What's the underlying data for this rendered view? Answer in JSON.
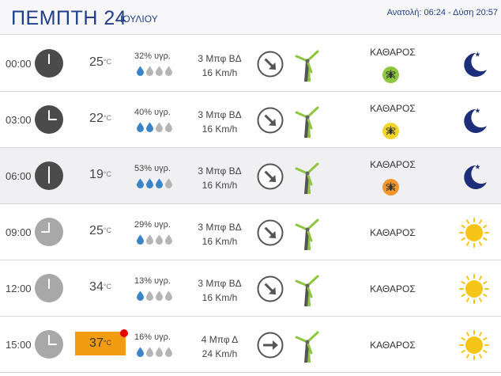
{
  "header": {
    "day_title": "ΠΕΜΠΤΗ 24",
    "month": "ΙΟΥΛΙΟΥ",
    "sun_info": "Ανατολή: 06:24  - Δύση 20:57"
  },
  "colors": {
    "title_blue": "#1f3f8a",
    "drop_filled": "#3a85c9",
    "drop_empty": "#b5b5b5",
    "mosquito_low": "#8dc63f",
    "mosquito_medium": "#f2d52b",
    "mosquito_high": "#f0962c",
    "hot_temperature": "#f39c12",
    "moon": "#1d2f7a",
    "sun": "#f5c518"
  },
  "temp_unit": "°C",
  "forecast": [
    {
      "time": "00:00",
      "hour": 0,
      "clock": "night",
      "temperature": "25",
      "humidity": "32% υγρ.",
      "drops_filled": 1,
      "wind_force": "3 Μπφ ΒΔ",
      "wind_speed": "16 Km/h",
      "wind_arrow": "arrow-down-right-icon",
      "condition": "ΚΑΘΑΡΟΣ",
      "mosquito_level": "low",
      "sky_icon": "moon-icon",
      "alt": false,
      "hot": false
    },
    {
      "time": "03:00",
      "hour": 3,
      "clock": "night",
      "temperature": "22",
      "humidity": "40% υγρ.",
      "drops_filled": 2,
      "wind_force": "3 Μπφ ΒΔ",
      "wind_speed": "16 Km/h",
      "wind_arrow": "arrow-down-right-icon",
      "condition": "ΚΑΘΑΡΟΣ",
      "mosquito_level": "medium",
      "sky_icon": "moon-icon",
      "alt": false,
      "hot": false
    },
    {
      "time": "06:00",
      "hour": 6,
      "clock": "night",
      "temperature": "19",
      "humidity": "53% υγρ.",
      "drops_filled": 3,
      "wind_force": "3 Μπφ ΒΔ",
      "wind_speed": "16 Km/h",
      "wind_arrow": "arrow-down-right-icon",
      "condition": "ΚΑΘΑΡΟΣ",
      "mosquito_level": "high",
      "sky_icon": "moon-icon",
      "alt": true,
      "hot": false
    },
    {
      "time": "09:00",
      "hour": 9,
      "clock": "day",
      "temperature": "25",
      "humidity": "29% υγρ.",
      "drops_filled": 1,
      "wind_force": "3 Μπφ ΒΔ",
      "wind_speed": "16 Km/h",
      "wind_arrow": "arrow-down-right-icon",
      "condition": "ΚΑΘΑΡΟΣ",
      "mosquito_level": null,
      "sky_icon": "sun-icon",
      "alt": false,
      "hot": false
    },
    {
      "time": "12:00",
      "hour": 12,
      "clock": "day",
      "temperature": "34",
      "humidity": "13% υγρ.",
      "drops_filled": 1,
      "wind_force": "3 Μπφ ΒΔ",
      "wind_speed": "16 Km/h",
      "wind_arrow": "arrow-down-right-icon",
      "condition": "ΚΑΘΑΡΟΣ",
      "mosquito_level": null,
      "sky_icon": "sun-icon",
      "alt": false,
      "hot": false
    },
    {
      "time": "15:00",
      "hour": 15,
      "clock": "day",
      "temperature": "37",
      "humidity": "16% υγρ.",
      "drops_filled": 1,
      "wind_force": "4 Μπφ Δ",
      "wind_speed": "24 Km/h",
      "wind_arrow": "arrow-right-icon",
      "condition": "ΚΑΘΑΡΟΣ",
      "mosquito_level": null,
      "sky_icon": "sun-icon",
      "alt": false,
      "hot": true
    }
  ]
}
